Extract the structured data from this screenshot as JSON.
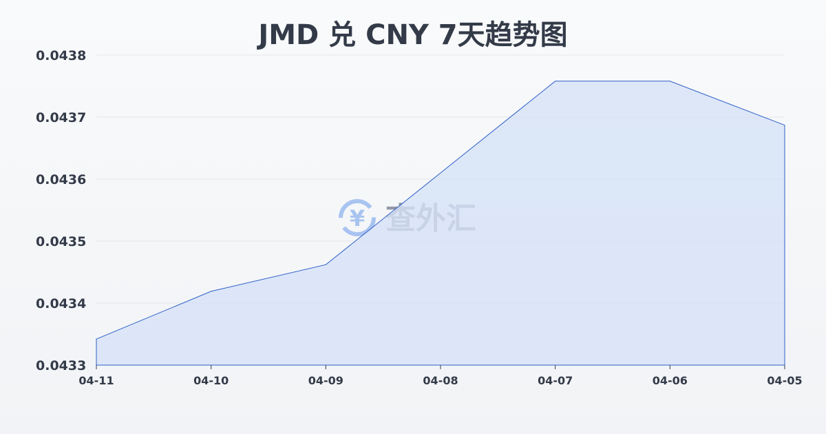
{
  "chart_data": {
    "type": "area",
    "title": "JMD 兑 CNY 7天趋势图",
    "xlabel": "",
    "ylabel": "",
    "categories": [
      "04-11",
      "04-10",
      "04-09",
      "04-08",
      "04-07",
      "04-06",
      "04-05"
    ],
    "values": [
      0.043342,
      0.043419,
      0.043462,
      0.04361,
      0.043758,
      0.043758,
      0.043687
    ],
    "ylim": [
      0.0433,
      0.0438
    ],
    "yticks": [
      "0.0433",
      "0.0434",
      "0.0435",
      "0.0436",
      "0.0437",
      "0.0438"
    ],
    "grid": true,
    "colors": {
      "line": "#2f5fc8",
      "fill": "#d6e2f7"
    }
  },
  "watermark": {
    "text": "查外汇",
    "icon": "yen-exchange-icon"
  }
}
